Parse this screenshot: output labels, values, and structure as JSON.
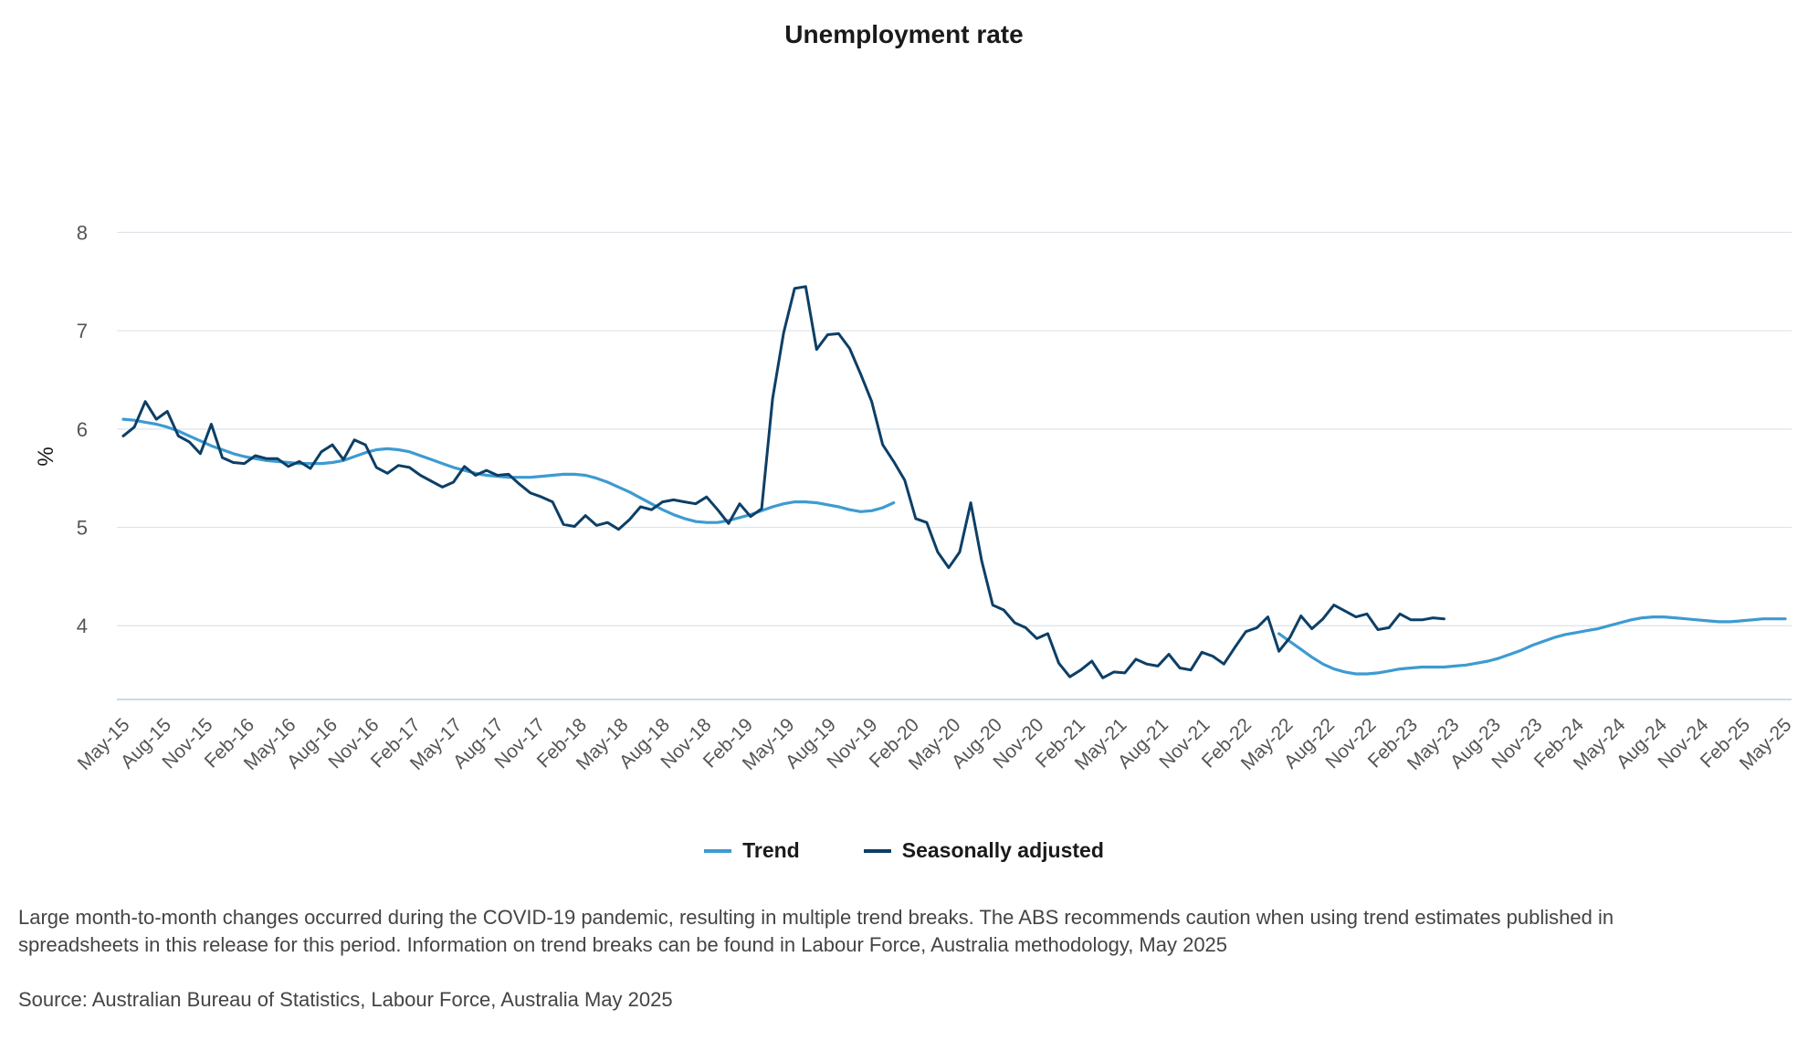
{
  "chart_data": {
    "type": "line",
    "title": "Unemployment rate",
    "ylabel": "%",
    "xlabel": "",
    "ylim": [
      3.25,
      8.2
    ],
    "yticks": [
      4,
      5,
      6,
      7,
      8
    ],
    "grid": true,
    "legend_position": "bottom",
    "x_tick_labels": [
      "May-15",
      "Aug-15",
      "Nov-15",
      "Feb-16",
      "May-16",
      "Aug-16",
      "Nov-16",
      "Feb-17",
      "May-17",
      "Aug-17",
      "Nov-17",
      "Feb-18",
      "May-18",
      "Aug-18",
      "Nov-18",
      "Feb-19",
      "May-19",
      "Aug-19",
      "Nov-19",
      "Feb-20",
      "May-20",
      "Aug-20",
      "Nov-20",
      "Feb-21",
      "May-21",
      "Aug-21",
      "Nov-21",
      "Feb-22",
      "May-22",
      "Aug-22",
      "Nov-22",
      "Feb-23",
      "May-23",
      "Aug-23",
      "Nov-23",
      "Feb-24",
      "May-24",
      "Aug-24",
      "Nov-24",
      "Feb-25",
      "May-25"
    ],
    "series": [
      {
        "name": "Trend",
        "color": "#3d9bd1",
        "values": [
          6.1,
          6.09,
          6.07,
          6.05,
          6.02,
          5.98,
          5.93,
          5.88,
          5.83,
          5.79,
          5.75,
          5.72,
          5.7,
          5.68,
          5.67,
          5.66,
          5.65,
          5.65,
          5.65,
          5.66,
          5.68,
          5.72,
          5.76,
          5.79,
          5.8,
          5.79,
          5.77,
          5.73,
          5.69,
          5.65,
          5.61,
          5.58,
          5.55,
          5.53,
          5.52,
          5.51,
          5.51,
          5.51,
          5.52,
          5.53,
          5.54,
          5.54,
          5.53,
          5.5,
          5.46,
          5.41,
          5.36,
          5.3,
          5.24,
          5.18,
          5.13,
          5.09,
          5.06,
          5.05,
          5.05,
          5.07,
          5.1,
          5.13,
          5.17,
          5.21,
          5.24,
          5.26,
          5.26,
          5.25,
          5.23,
          5.21,
          5.18,
          5.16,
          5.17,
          5.2,
          5.25,
          null,
          null,
          null,
          null,
          null,
          null,
          null,
          null,
          null,
          null,
          null,
          null,
          null,
          null,
          null,
          null,
          null,
          null,
          null,
          null,
          null,
          null,
          null,
          null,
          null,
          null,
          null,
          null,
          null,
          null,
          null,
          null,
          null,
          null,
          3.92,
          3.84,
          3.76,
          3.68,
          3.61,
          3.56,
          3.53,
          3.51,
          3.51,
          3.52,
          3.54,
          3.56,
          3.57,
          3.58,
          3.58,
          3.58,
          3.59,
          3.6,
          3.62,
          3.64,
          3.67,
          3.71,
          3.75,
          3.8,
          3.84,
          3.88,
          3.91,
          3.93,
          3.95,
          3.97,
          4.0,
          4.03,
          4.06,
          4.08,
          4.09,
          4.09,
          4.08,
          4.07,
          4.06,
          4.05,
          4.04,
          4.04,
          4.05,
          4.06,
          4.07,
          4.07,
          4.07
        ]
      },
      {
        "name": "Seasonally adjusted",
        "color": "#0d3f66",
        "values": [
          5.93,
          6.02,
          6.28,
          6.1,
          6.18,
          5.93,
          5.87,
          5.75,
          6.05,
          5.71,
          5.66,
          5.65,
          5.73,
          5.7,
          5.7,
          5.62,
          5.67,
          5.6,
          5.77,
          5.84,
          5.69,
          5.89,
          5.84,
          5.61,
          5.55,
          5.63,
          5.61,
          5.53,
          5.47,
          5.41,
          5.46,
          5.62,
          5.53,
          5.58,
          5.53,
          5.54,
          5.44,
          5.35,
          5.31,
          5.26,
          5.03,
          5.01,
          5.12,
          5.02,
          5.05,
          4.98,
          5.08,
          5.21,
          5.18,
          5.26,
          5.28,
          5.26,
          5.24,
          5.31,
          5.18,
          5.04,
          5.24,
          5.11,
          5.19,
          6.31,
          6.98,
          7.43,
          7.45,
          6.81,
          6.96,
          6.97,
          6.82,
          6.56,
          6.28,
          5.84,
          5.67,
          5.48,
          5.09,
          5.05,
          4.75,
          4.59,
          4.75,
          5.25,
          4.66,
          4.21,
          4.16,
          4.03,
          3.98,
          3.87,
          3.92,
          3.62,
          3.48,
          3.55,
          3.64,
          3.47,
          3.53,
          3.52,
          3.66,
          3.61,
          3.59,
          3.71,
          3.57,
          3.55,
          3.73,
          3.69,
          3.61,
          3.78,
          3.94,
          3.98,
          4.09,
          3.74,
          3.88,
          4.1,
          3.97,
          4.07,
          4.21,
          4.15,
          4.09,
          4.12,
          3.96,
          3.98,
          4.12,
          4.06,
          4.06,
          4.08,
          4.07
        ]
      }
    ]
  },
  "notes": {
    "trend_break_note": "Large month-to-month changes occurred during the COVID-19 pandemic, resulting in multiple trend breaks. The ABS recommends caution when using trend estimates published in spreadsheets in this release for this period. Information on trend breaks can be found in Labour Force, Australia methodology, May 2025",
    "source": "Source: Australian Bureau of Statistics, Labour Force, Australia May 2025"
  }
}
